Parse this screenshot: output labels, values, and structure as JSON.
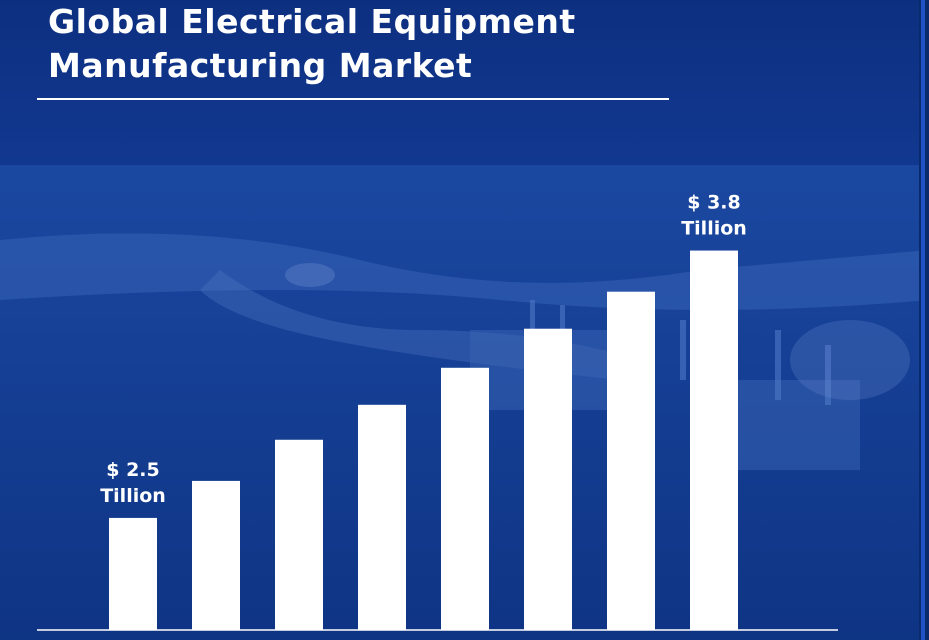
{
  "title": {
    "line1": "Global Electrical Equipment",
    "line2": "Manufacturing Market"
  },
  "colors": {
    "background": "#0b2f7a",
    "bar": "#ffffff",
    "text": "#ffffff"
  },
  "chart_data": {
    "type": "bar",
    "title": "Global Electrical Equipment Manufacturing Market",
    "categories": [
      "",
      "",
      "",
      "",
      "",
      "",
      "",
      ""
    ],
    "values": [
      2.5,
      2.68,
      2.88,
      3.05,
      3.23,
      3.42,
      3.6,
      3.8
    ],
    "ylim": [
      1.955,
      3.9
    ],
    "unit": "Trillion",
    "annotations": [
      {
        "index": 0,
        "line1": "$ 2.5",
        "line2": "Tillion"
      },
      {
        "index": 7,
        "line1": "$ 3.8",
        "line2": "Tillion"
      }
    ],
    "grid": false,
    "legend": "none"
  }
}
